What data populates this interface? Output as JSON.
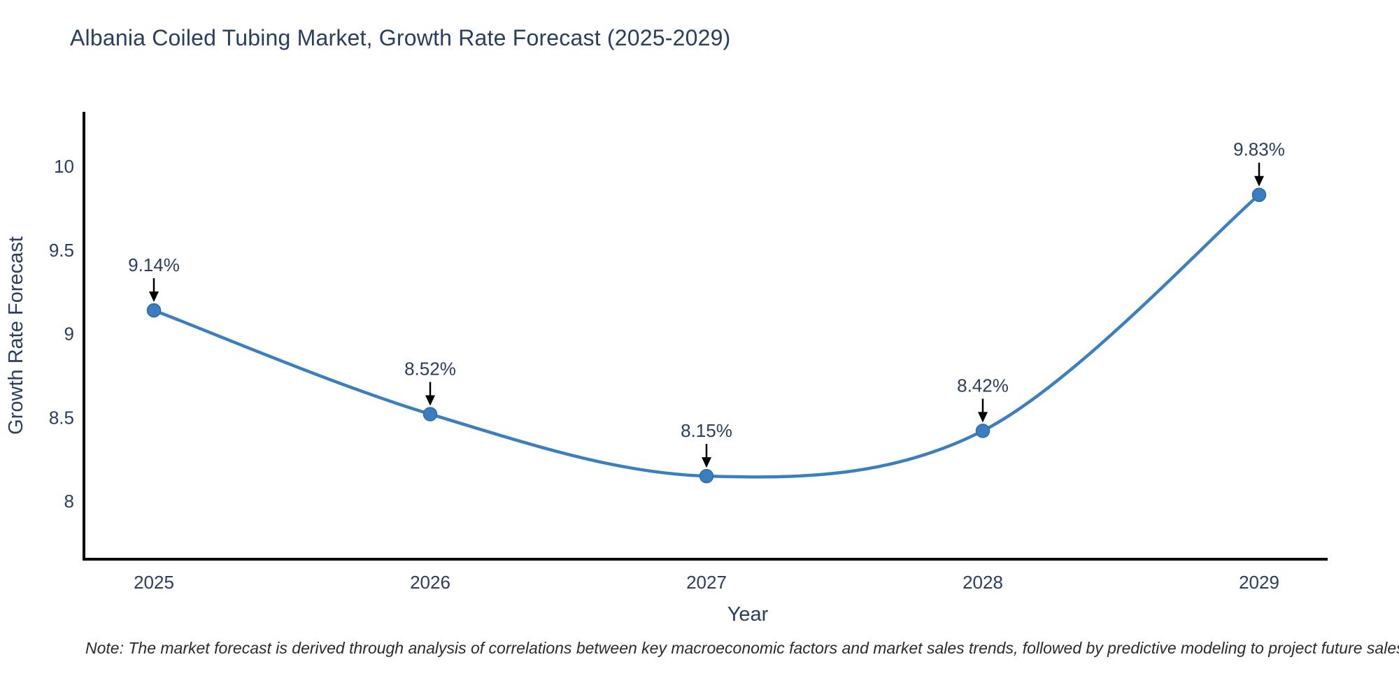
{
  "title": "Albania Coiled Tubing Market, Growth Rate Forecast (2025-2029)",
  "note": "Note: The market forecast is derived through analysis of correlations between key macroeconomic factors and market sales trends, followed by predictive modeling to project future sales",
  "chart_data": {
    "type": "line",
    "title": "Albania Coiled Tubing Market, Growth Rate Forecast (2025-2029)",
    "categories": [
      "2025",
      "2026",
      "2027",
      "2028",
      "2029"
    ],
    "values": [
      9.14,
      8.52,
      8.15,
      8.42,
      9.83
    ],
    "point_labels": [
      "9.14%",
      "8.52%",
      "8.15%",
      "8.42%",
      "9.83%"
    ],
    "xlabel": "Year",
    "ylabel": "Growth Rate Forecast",
    "yticks": [
      8,
      8.5,
      9,
      9.5,
      10
    ],
    "ylim": [
      7.65,
      10.35
    ],
    "line_shape": "spline",
    "grid": false,
    "legend_position": "none",
    "colors": {
      "line": "#3c7fbf",
      "marker_fill": "#3a7ebf",
      "marker_edge": "#2f6ba8",
      "axis_line": "#000000",
      "tick_text": "#2a3f5f",
      "annotation_text": "#2a3f5f",
      "annotation_arrow": "#000000",
      "background": "#ffffff"
    }
  }
}
